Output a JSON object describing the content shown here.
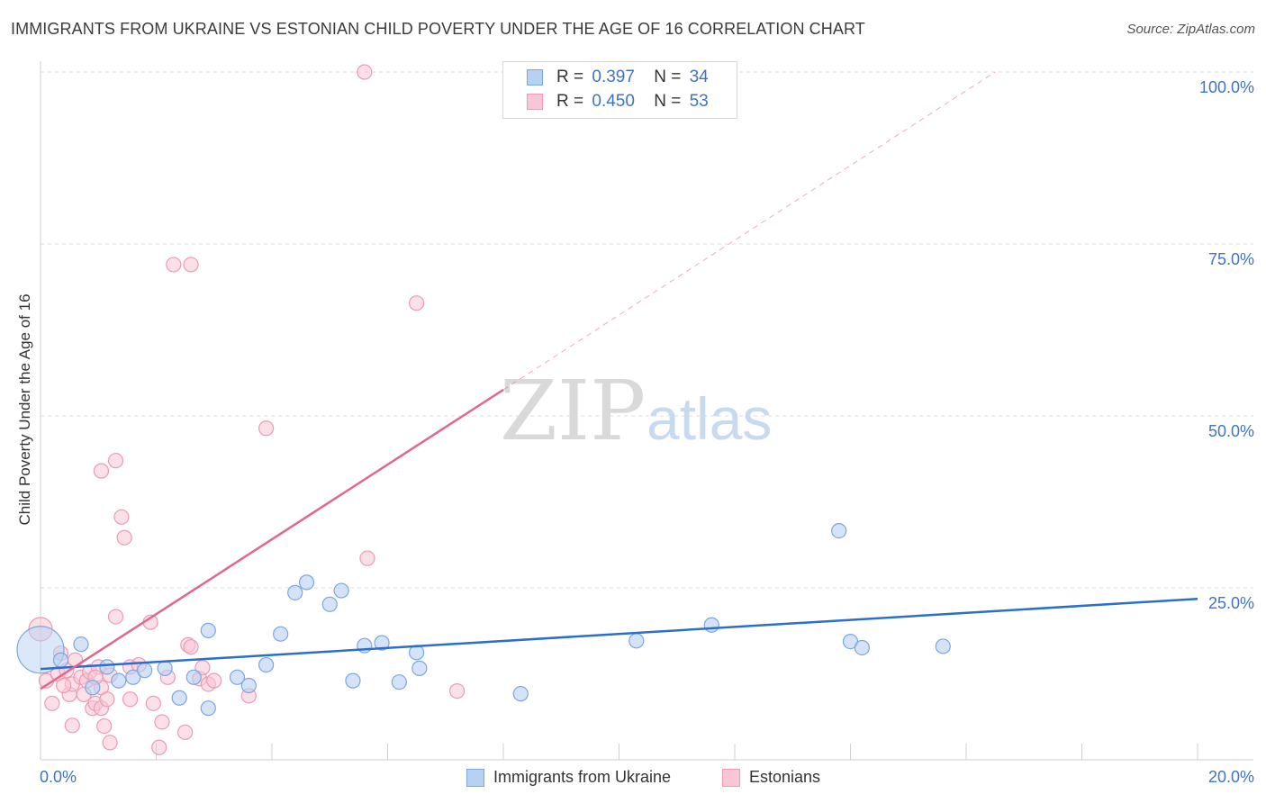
{
  "title": "IMMIGRANTS FROM UKRAINE VS ESTONIAN CHILD POVERTY UNDER THE AGE OF 16 CORRELATION CHART",
  "source": "Source: ZipAtlas.com",
  "watermark": {
    "zip": "ZIP",
    "atlas": "atlas"
  },
  "legend": [
    {
      "name": "Immigrants from Ukraine",
      "r_label": "R =",
      "r_value": "0.397",
      "n_label": "N =",
      "n_value": "34"
    },
    {
      "name": "Estonians",
      "r_label": "R =",
      "r_value": "0.450",
      "n_label": "N =",
      "n_value": "53"
    }
  ],
  "colors": {
    "blue_fill": "#b7d1f3",
    "blue_stroke": "#7ba6e0",
    "blue_line": "#2a6fcc",
    "pink_fill": "#f8c6d5",
    "pink_stroke": "#ee9ab5",
    "pink_line": "#e3668f",
    "tick_label": "#3f72c9"
  },
  "chart_data": {
    "type": "scatter",
    "title": "IMMIGRANTS FROM UKRAINE VS ESTONIAN CHILD POVERTY UNDER THE AGE OF 16 CORRELATION CHART",
    "xlabel": "",
    "ylabel": "Child Poverty Under the Age of 16",
    "xlim": [
      0,
      20
    ],
    "ylim": [
      0,
      100
    ],
    "x_tick_labels": [
      "0.0%",
      "20.0%"
    ],
    "y_ticks": [
      25,
      50,
      75,
      100
    ],
    "y_tick_labels": [
      "25.0%",
      "50.0%",
      "75.0%",
      "100.0%"
    ],
    "grid": true,
    "legend_position": "top-center",
    "series": [
      {
        "name": "Immigrants from Ukraine",
        "trend": {
          "x": [
            0,
            20
          ],
          "y": [
            13.2,
            23.4
          ]
        },
        "points": [
          [
            0.0,
            16.0
          ],
          [
            0.35,
            14.5
          ],
          [
            0.7,
            16.8
          ],
          [
            0.9,
            10.5
          ],
          [
            1.15,
            13.5
          ],
          [
            1.35,
            11.5
          ],
          [
            1.6,
            12.0
          ],
          [
            1.8,
            13.0
          ],
          [
            2.15,
            13.3
          ],
          [
            2.4,
            9.0
          ],
          [
            2.65,
            12.0
          ],
          [
            2.9,
            7.5
          ],
          [
            2.9,
            18.8
          ],
          [
            3.4,
            12.0
          ],
          [
            3.6,
            10.8
          ],
          [
            3.9,
            13.8
          ],
          [
            4.15,
            18.3
          ],
          [
            4.4,
            24.3
          ],
          [
            4.6,
            25.8
          ],
          [
            5.0,
            22.6
          ],
          [
            5.2,
            24.6
          ],
          [
            5.4,
            11.5
          ],
          [
            5.6,
            16.6
          ],
          [
            5.9,
            17.0
          ],
          [
            6.2,
            11.3
          ],
          [
            6.5,
            15.6
          ],
          [
            6.55,
            13.3
          ],
          [
            8.3,
            9.6
          ],
          [
            10.3,
            17.3
          ],
          [
            11.6,
            19.6
          ],
          [
            13.8,
            33.3
          ],
          [
            14.0,
            17.2
          ],
          [
            14.2,
            16.3
          ],
          [
            15.6,
            16.5
          ]
        ]
      },
      {
        "name": "Estonians",
        "trend": {
          "x": [
            0,
            8.0
          ],
          "y": [
            10.3,
            53.8
          ]
        },
        "trend_extension": {
          "x": [
            8.0,
            16.5
          ],
          "y": [
            53.8,
            100
          ]
        },
        "points": [
          [
            0.0,
            19.0
          ],
          [
            0.1,
            11.5
          ],
          [
            0.2,
            8.2
          ],
          [
            0.3,
            12.5
          ],
          [
            0.35,
            15.5
          ],
          [
            0.45,
            13.0
          ],
          [
            0.5,
            9.5
          ],
          [
            0.55,
            11.0
          ],
          [
            0.55,
            5.0
          ],
          [
            0.6,
            14.5
          ],
          [
            0.7,
            12.0
          ],
          [
            0.75,
            9.5
          ],
          [
            0.8,
            11.5
          ],
          [
            0.85,
            12.8
          ],
          [
            0.9,
            7.5
          ],
          [
            0.95,
            8.2
          ],
          [
            1.0,
            13.5
          ],
          [
            1.05,
            7.5
          ],
          [
            1.05,
            10.5
          ],
          [
            1.05,
            42.0
          ],
          [
            1.1,
            4.9
          ],
          [
            1.15,
            8.8
          ],
          [
            1.2,
            2.5
          ],
          [
            1.3,
            20.8
          ],
          [
            1.3,
            43.5
          ],
          [
            1.4,
            35.3
          ],
          [
            1.45,
            32.3
          ],
          [
            1.55,
            13.5
          ],
          [
            1.55,
            8.8
          ],
          [
            1.7,
            13.8
          ],
          [
            1.9,
            20.0
          ],
          [
            1.95,
            8.2
          ],
          [
            2.05,
            1.8
          ],
          [
            2.1,
            5.5
          ],
          [
            2.3,
            72.0
          ],
          [
            2.55,
            16.7
          ],
          [
            2.6,
            16.4
          ],
          [
            2.75,
            11.8
          ],
          [
            2.8,
            13.4
          ],
          [
            2.9,
            11.0
          ],
          [
            3.6,
            9.3
          ],
          [
            3.9,
            48.2
          ],
          [
            5.6,
            100.0
          ],
          [
            5.65,
            29.3
          ],
          [
            6.5,
            66.4
          ],
          [
            7.2,
            10.0
          ],
          [
            2.6,
            72.0
          ],
          [
            3.0,
            11.5
          ],
          [
            0.95,
            12.0
          ],
          [
            2.5,
            4.0
          ],
          [
            0.4,
            10.8
          ],
          [
            1.2,
            12.3
          ],
          [
            2.2,
            12.0
          ]
        ]
      }
    ]
  }
}
